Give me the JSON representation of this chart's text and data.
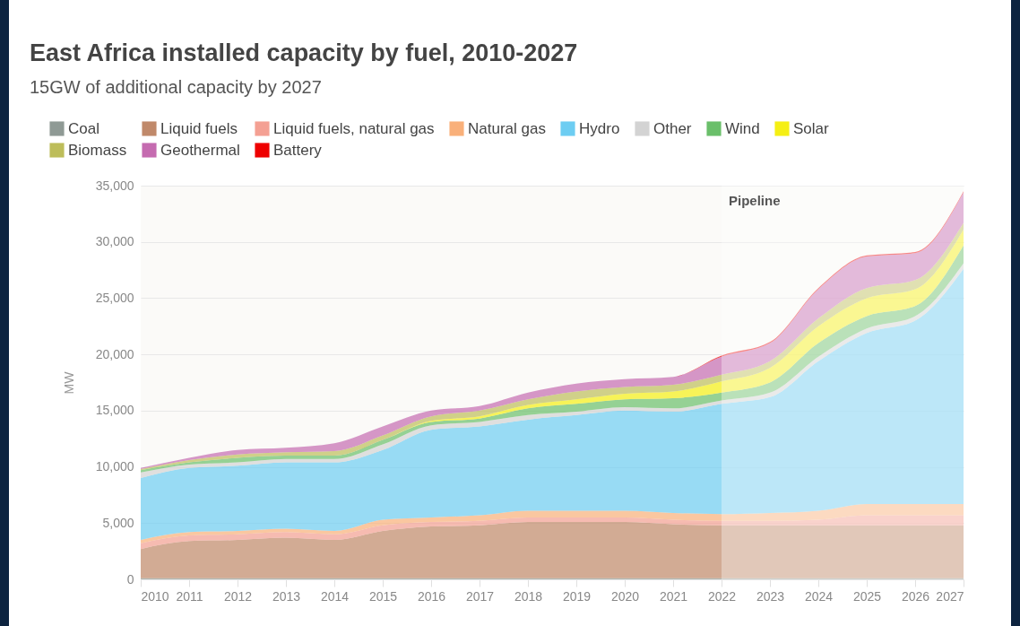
{
  "chart_data": {
    "type": "area",
    "stacked": true,
    "title": "East Africa installed capacity by fuel, 2010-2027",
    "subtitle": "15GW of additional capacity by 2027",
    "ylabel": "MW",
    "x": [
      2010,
      2011,
      2012,
      2013,
      2014,
      2015,
      2016,
      2017,
      2018,
      2019,
      2020,
      2021,
      2022,
      2023,
      2024,
      2025,
      2026,
      2027
    ],
    "xlim": [
      2010,
      2027
    ],
    "xticks": [
      2010,
      2011,
      2012,
      2013,
      2014,
      2015,
      2016,
      2017,
      2018,
      2019,
      2020,
      2021,
      2022,
      2023,
      2024,
      2025,
      2026,
      2027
    ],
    "ylim": [
      0,
      35000
    ],
    "yticks": [
      {
        "value": 0,
        "label": "0"
      },
      {
        "value": 5000,
        "label": "5,000"
      },
      {
        "value": 10000,
        "label": "10,000"
      },
      {
        "value": 15000,
        "label": "15,000"
      },
      {
        "value": 20000,
        "label": "20,000"
      },
      {
        "value": 25000,
        "label": "25,000"
      },
      {
        "value": 30000,
        "label": "30,000"
      },
      {
        "value": 35000,
        "label": "35,000"
      }
    ],
    "grid": "y",
    "legend": "top",
    "series": [
      {
        "name": "Coal",
        "color": "#8f9a95",
        "values": [
          100,
          100,
          100,
          100,
          100,
          100,
          100,
          100,
          100,
          100,
          100,
          100,
          100,
          100,
          100,
          100,
          100,
          100
        ]
      },
      {
        "name": "Liquid fuels",
        "color": "#c0896a",
        "values": [
          2600,
          3300,
          3400,
          3600,
          3400,
          4200,
          4600,
          4700,
          5000,
          5000,
          5000,
          4800,
          4700,
          4700,
          4700,
          4700,
          4700,
          4700
        ]
      },
      {
        "name": "Liquid fuels, natural gas",
        "color": "#f4a093",
        "values": [
          500,
          500,
          500,
          500,
          500,
          500,
          400,
          400,
          400,
          400,
          400,
          400,
          400,
          400,
          500,
          900,
          900,
          900
        ]
      },
      {
        "name": "Natural gas",
        "color": "#f9b07a",
        "values": [
          300,
          300,
          300,
          300,
          300,
          500,
          400,
          500,
          600,
          600,
          600,
          600,
          600,
          700,
          800,
          1000,
          1000,
          1000
        ]
      },
      {
        "name": "Hydro",
        "color": "#6dcdf2",
        "values": [
          5500,
          5700,
          5800,
          5900,
          6100,
          6200,
          7800,
          7900,
          8100,
          8500,
          8900,
          9000,
          9800,
          10300,
          13300,
          15200,
          16300,
          20900
        ]
      },
      {
        "name": "Other",
        "color": "#d3d3d3",
        "values": [
          500,
          300,
          300,
          300,
          300,
          500,
          400,
          400,
          400,
          300,
          300,
          300,
          300,
          400,
          400,
          400,
          400,
          500
        ]
      },
      {
        "name": "Wind",
        "color": "#6abf6a",
        "values": [
          200,
          200,
          400,
          300,
          300,
          400,
          300,
          300,
          600,
          700,
          700,
          900,
          700,
          900,
          1200,
          1100,
          900,
          1600
        ]
      },
      {
        "name": "Solar",
        "color": "#f5ef14",
        "values": [
          0,
          0,
          0,
          0,
          0,
          0,
          100,
          200,
          300,
          400,
          500,
          600,
          1000,
          1300,
          1500,
          1600,
          1500,
          1400
        ]
      },
      {
        "name": "Biomass",
        "color": "#bdbd5a",
        "values": [
          100,
          200,
          300,
          300,
          400,
          400,
          400,
          500,
          500,
          700,
          600,
          600,
          600,
          600,
          700,
          900,
          800,
          600
        ]
      },
      {
        "name": "Geothermal",
        "color": "#c56bb0",
        "values": [
          100,
          200,
          400,
          400,
          700,
          800,
          500,
          400,
          600,
          700,
          700,
          700,
          1600,
          1600,
          2600,
          2800,
          2400,
          2700
        ]
      },
      {
        "name": "Battery",
        "color": "#ee0000",
        "values": [
          0,
          0,
          0,
          0,
          0,
          0,
          0,
          0,
          0,
          0,
          0,
          0,
          100,
          100,
          100,
          100,
          100,
          100
        ]
      }
    ],
    "bands": [
      {
        "axis": "x",
        "from": 2022,
        "to": 2027,
        "label": "Pipeline",
        "color": "#ffffff"
      }
    ]
  }
}
